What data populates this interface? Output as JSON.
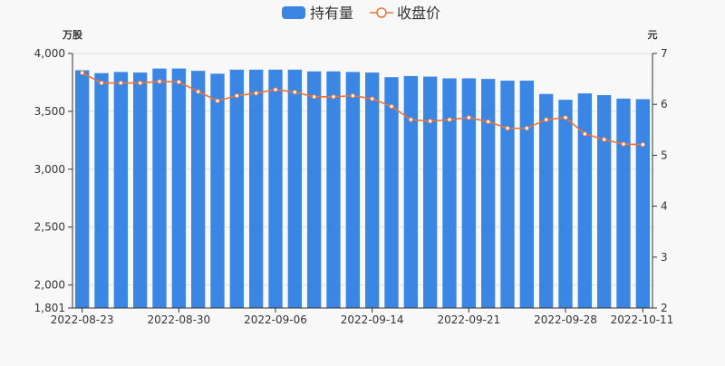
{
  "chart_data": {
    "type": "bar",
    "legend": {
      "position": "top-center",
      "items": [
        {
          "name": "持有量",
          "color": "#3c86e3",
          "icon": "bar-legend-swatch"
        },
        {
          "name": "收盘价",
          "color": "#e9743c",
          "icon": "line-circle-legend-swatch"
        }
      ]
    },
    "left_axis": {
      "unit": "万股",
      "min": 1801,
      "max": 4000,
      "tick_labels": [
        "4,000",
        "3,500",
        "3,000",
        "2,500",
        "2,000",
        "1,801"
      ]
    },
    "right_axis": {
      "unit": "元",
      "min": 2,
      "max": 7,
      "tick_labels": [
        "7",
        "6",
        "5",
        "4",
        "3",
        "2"
      ]
    },
    "x_tick_labels": [
      "2022-08-23",
      "2022-08-30",
      "2022-09-06",
      "2022-09-14",
      "2022-09-21",
      "2022-09-28",
      "2022-10-11"
    ],
    "categories": [
      "2022-08-23",
      "2022-08-24",
      "2022-08-25",
      "2022-08-26",
      "2022-08-29",
      "2022-08-30",
      "2022-08-31",
      "2022-09-01",
      "2022-09-02",
      "2022-09-05",
      "2022-09-06",
      "2022-09-07",
      "2022-09-08",
      "2022-09-09",
      "2022-09-13",
      "2022-09-14",
      "2022-09-15",
      "2022-09-16",
      "2022-09-19",
      "2022-09-20",
      "2022-09-21",
      "2022-09-22",
      "2022-09-23",
      "2022-09-26",
      "2022-09-27",
      "2022-09-28",
      "2022-09-29",
      "2022-09-30",
      "2022-10-10",
      "2022-10-11"
    ],
    "series": [
      {
        "name": "持有量",
        "type": "bar",
        "axis": "left",
        "color": "#3c86e3",
        "values": [
          3855,
          3830,
          3840,
          3835,
          3870,
          3870,
          3850,
          3825,
          3860,
          3860,
          3860,
          3860,
          3845,
          3845,
          3840,
          3835,
          3795,
          3805,
          3800,
          3785,
          3785,
          3780,
          3765,
          3765,
          3650,
          3600,
          3655,
          3640,
          3610,
          3605
        ]
      },
      {
        "name": "收盘价",
        "type": "line",
        "axis": "right",
        "color": "#e9743c",
        "values": [
          6.62,
          6.42,
          6.42,
          6.42,
          6.45,
          6.44,
          6.25,
          6.07,
          6.17,
          6.22,
          6.29,
          6.24,
          6.15,
          6.15,
          6.17,
          6.11,
          5.96,
          5.7,
          5.67,
          5.7,
          5.74,
          5.66,
          5.53,
          5.53,
          5.7,
          5.74,
          5.42,
          5.31,
          5.22,
          5.21
        ]
      }
    ],
    "grid": true
  }
}
